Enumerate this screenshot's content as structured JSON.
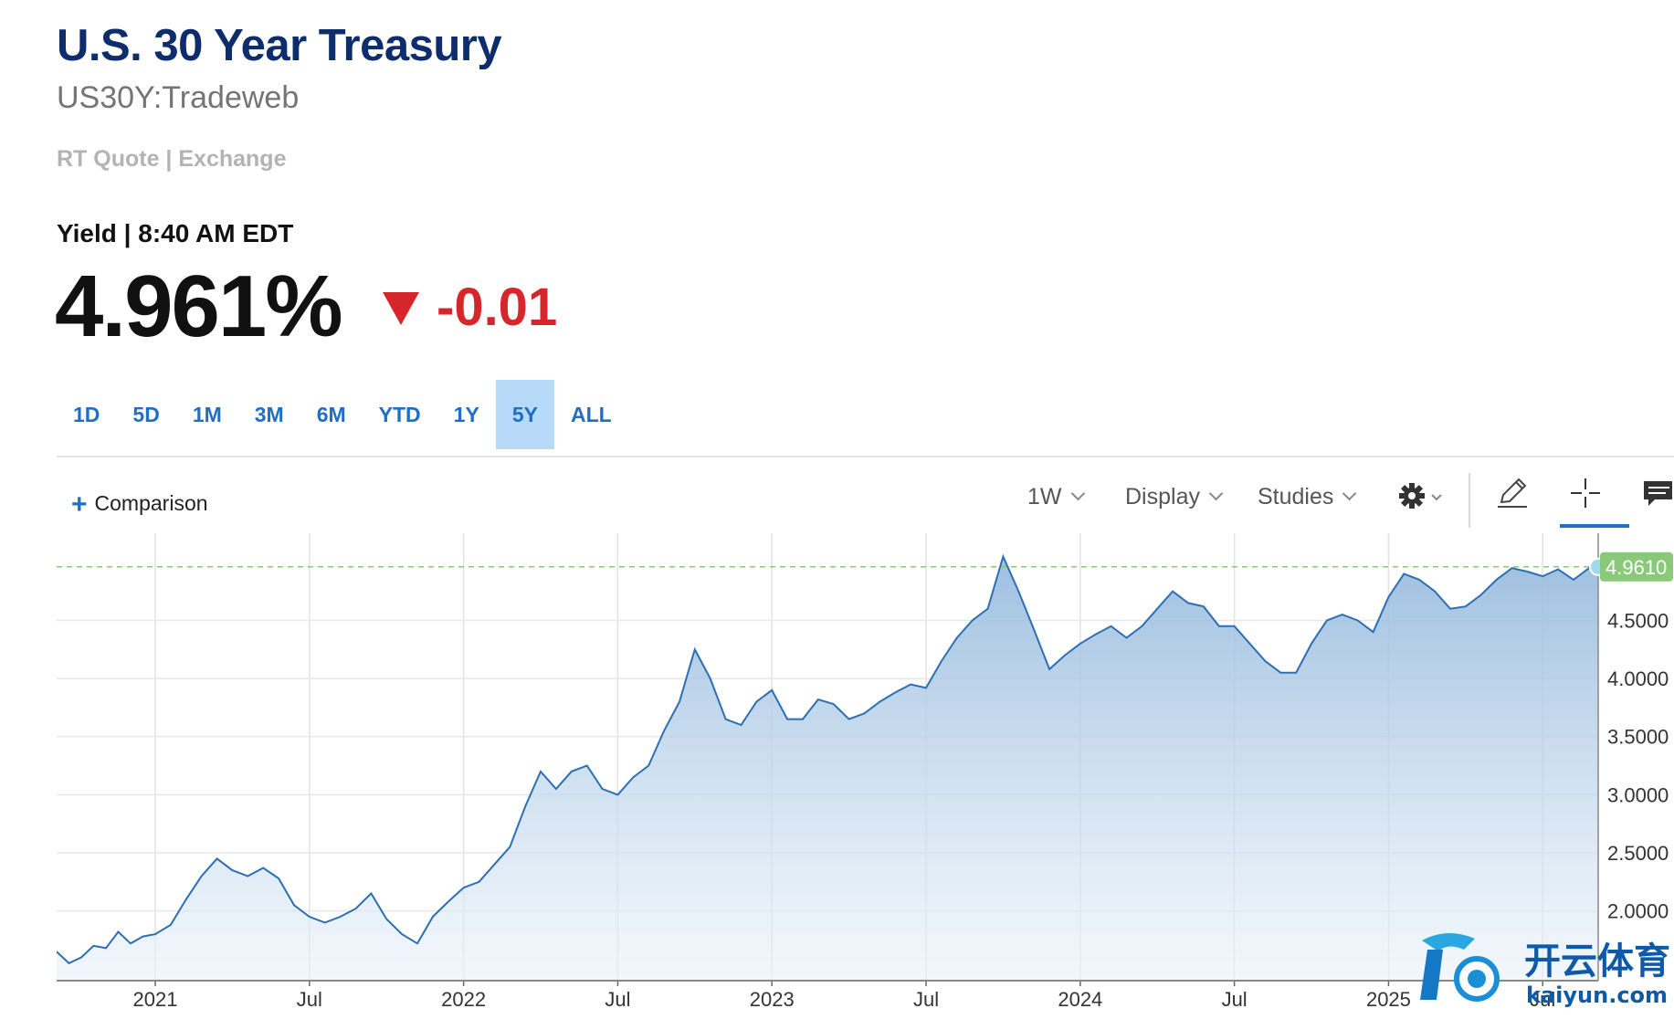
{
  "header": {
    "title": "U.S. 30 Year Treasury",
    "symbol": "US30Y:Tradeweb",
    "quote_source": "RT Quote | Exchange",
    "yield_time": "Yield | 8:40 AM EDT",
    "price": "4.961%",
    "change": "-0.01"
  },
  "ranges": [
    {
      "label": "1D",
      "active": false
    },
    {
      "label": "5D",
      "active": false
    },
    {
      "label": "1M",
      "active": false
    },
    {
      "label": "3M",
      "active": false
    },
    {
      "label": "6M",
      "active": false
    },
    {
      "label": "YTD",
      "active": false
    },
    {
      "label": "1Y",
      "active": false
    },
    {
      "label": "5Y",
      "active": true
    },
    {
      "label": "ALL",
      "active": false
    }
  ],
  "toolbar": {
    "comparison": "Comparison",
    "interval": "1W",
    "display": "Display",
    "studies": "Studies",
    "icons": [
      "gear-icon",
      "pencil-icon",
      "crosshair-icon",
      "comment-icon"
    ]
  },
  "colors": {
    "accent": "#1f6fc6",
    "line": "#2c6fb3",
    "down": "#d6262b",
    "current_badge": "#8bc97a",
    "title": "#0d2d6c"
  },
  "watermark": {
    "brand": "开云体育",
    "url": "kaiyun.com"
  },
  "chart_data": {
    "type": "area",
    "ylim": [
      1.4,
      5.25
    ],
    "yticks": [
      "2.0000",
      "2.5000",
      "3.0000",
      "3.5000",
      "4.0000",
      "4.5000"
    ],
    "current_value": "4.9610",
    "xticks": [
      {
        "label": "2021",
        "t": 2021.0
      },
      {
        "label": "Jul",
        "t": 2021.5
      },
      {
        "label": "2022",
        "t": 2022.0
      },
      {
        "label": "Jul",
        "t": 2022.5
      },
      {
        "label": "2023",
        "t": 2023.0
      },
      {
        "label": "Jul",
        "t": 2023.5
      },
      {
        "label": "2024",
        "t": 2024.0
      },
      {
        "label": "Jul",
        "t": 2024.5
      },
      {
        "label": "2025",
        "t": 2025.0
      },
      {
        "label": "Jul",
        "t": 2025.5
      }
    ],
    "x_range": [
      2020.68,
      2025.68
    ],
    "t": [
      2020.68,
      2020.72,
      2020.76,
      2020.8,
      2020.84,
      2020.88,
      2020.92,
      2020.96,
      2021.0,
      2021.05,
      2021.1,
      2021.15,
      2021.2,
      2021.25,
      2021.3,
      2021.35,
      2021.4,
      2021.45,
      2021.5,
      2021.55,
      2021.6,
      2021.65,
      2021.7,
      2021.75,
      2021.8,
      2021.85,
      2021.9,
      2021.95,
      2022.0,
      2022.05,
      2022.1,
      2022.15,
      2022.2,
      2022.25,
      2022.3,
      2022.35,
      2022.4,
      2022.45,
      2022.5,
      2022.55,
      2022.6,
      2022.65,
      2022.7,
      2022.75,
      2022.8,
      2022.85,
      2022.9,
      2022.95,
      2023.0,
      2023.05,
      2023.1,
      2023.15,
      2023.2,
      2023.25,
      2023.3,
      2023.35,
      2023.4,
      2023.45,
      2023.5,
      2023.55,
      2023.6,
      2023.65,
      2023.7,
      2023.75,
      2023.8,
      2023.85,
      2023.9,
      2023.95,
      2024.0,
      2024.05,
      2024.1,
      2024.15,
      2024.2,
      2024.25,
      2024.3,
      2024.35,
      2024.4,
      2024.45,
      2024.5,
      2024.55,
      2024.6,
      2024.65,
      2024.7,
      2024.75,
      2024.8,
      2024.85,
      2024.9,
      2024.95,
      2025.0,
      2025.05,
      2025.1,
      2025.15,
      2025.2,
      2025.25,
      2025.3,
      2025.35,
      2025.4,
      2025.45,
      2025.5,
      2025.55,
      2025.6,
      2025.65,
      2025.68
    ],
    "values": [
      1.65,
      1.55,
      1.6,
      1.7,
      1.68,
      1.82,
      1.72,
      1.78,
      1.8,
      1.88,
      2.1,
      2.3,
      2.45,
      2.35,
      2.3,
      2.37,
      2.28,
      2.05,
      1.95,
      1.9,
      1.95,
      2.02,
      2.15,
      1.93,
      1.8,
      1.72,
      1.95,
      2.08,
      2.2,
      2.25,
      2.4,
      2.55,
      2.9,
      3.2,
      3.05,
      3.2,
      3.25,
      3.05,
      3.0,
      3.15,
      3.25,
      3.55,
      3.8,
      4.25,
      4.0,
      3.65,
      3.6,
      3.8,
      3.9,
      3.65,
      3.65,
      3.82,
      3.78,
      3.65,
      3.7,
      3.8,
      3.88,
      3.95,
      3.92,
      4.15,
      4.35,
      4.5,
      4.6,
      5.05,
      4.75,
      4.42,
      4.08,
      4.2,
      4.3,
      4.38,
      4.45,
      4.35,
      4.45,
      4.6,
      4.75,
      4.65,
      4.62,
      4.45,
      4.45,
      4.3,
      4.15,
      4.05,
      4.05,
      4.3,
      4.5,
      4.55,
      4.5,
      4.4,
      4.7,
      4.9,
      4.85,
      4.75,
      4.6,
      4.62,
      4.72,
      4.85,
      4.95,
      4.92,
      4.88,
      4.94,
      4.85,
      4.95,
      4.961
    ]
  }
}
